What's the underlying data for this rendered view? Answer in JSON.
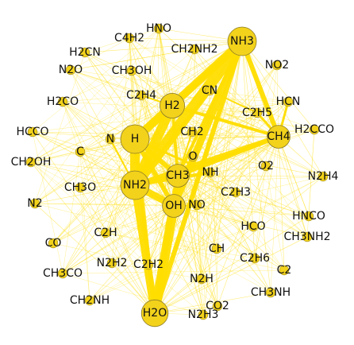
{
  "chart_data": {
    "type": "network",
    "title": "",
    "colors": {
      "node_fill": "#f2d21b",
      "node_stroke": "#8a7a2a",
      "edge": "#ffdd00",
      "label": "#111111"
    },
    "nodes": [
      {
        "id": "NH3",
        "size": 3.0
      },
      {
        "id": "H",
        "size": 3.0
      },
      {
        "id": "NH2",
        "size": 3.0
      },
      {
        "id": "H2",
        "size": 2.6
      },
      {
        "id": "C2H4",
        "size": 1.0
      },
      {
        "id": "CH4",
        "size": 2.4
      },
      {
        "id": "OH",
        "size": 2.4
      },
      {
        "id": "CH3",
        "size": 2.4
      },
      {
        "id": "H2O",
        "size": 2.8
      },
      {
        "id": "O",
        "size": 1.0
      },
      {
        "id": "NH",
        "size": 1.0
      },
      {
        "id": "NO",
        "size": 1.0
      },
      {
        "id": "CN",
        "size": 1.0
      },
      {
        "id": "C2H5",
        "size": 1.0
      },
      {
        "id": "HCN",
        "size": 1.0
      },
      {
        "id": "CH2",
        "size": 1.0
      },
      {
        "id": "N",
        "size": 1.0
      },
      {
        "id": "C",
        "size": 1.0
      },
      {
        "id": "HNO",
        "size": 1.0
      },
      {
        "id": "C4H2",
        "size": 1.0
      },
      {
        "id": "H2CN",
        "size": 1.0
      },
      {
        "id": "CH2NH2",
        "size": 1.0
      },
      {
        "id": "NO2",
        "size": 1.0
      },
      {
        "id": "N2O",
        "size": 1.0
      },
      {
        "id": "CH3OH",
        "size": 1.0
      },
      {
        "id": "H2CO",
        "size": 1.0
      },
      {
        "id": "HCCO",
        "size": 1.0
      },
      {
        "id": "H2CCO",
        "size": 1.0
      },
      {
        "id": "CH2OH",
        "size": 1.0
      },
      {
        "id": "O2",
        "size": 1.0
      },
      {
        "id": "N2H4",
        "size": 1.0
      },
      {
        "id": "CH3O",
        "size": 1.0
      },
      {
        "id": "C2H3",
        "size": 1.0
      },
      {
        "id": "N2",
        "size": 1.0
      },
      {
        "id": "HCO",
        "size": 1.0
      },
      {
        "id": "HNCO",
        "size": 1.0
      },
      {
        "id": "C2H",
        "size": 1.0
      },
      {
        "id": "CH3NH2",
        "size": 1.0
      },
      {
        "id": "CO",
        "size": 1.0
      },
      {
        "id": "N2H2",
        "size": 1.0
      },
      {
        "id": "C2H2",
        "size": 1.0
      },
      {
        "id": "CH",
        "size": 1.0
      },
      {
        "id": "C2H6",
        "size": 1.0
      },
      {
        "id": "CH3CO",
        "size": 1.0
      },
      {
        "id": "C2",
        "size": 1.0
      },
      {
        "id": "N2H",
        "size": 1.0
      },
      {
        "id": "CH3NH",
        "size": 1.0
      },
      {
        "id": "CH2NH",
        "size": 1.0
      },
      {
        "id": "CO2",
        "size": 1.0
      },
      {
        "id": "N2H3",
        "size": 1.0
      }
    ],
    "major_edges": [
      {
        "source": "NH3",
        "target": "H",
        "weight": 10
      },
      {
        "source": "NH3",
        "target": "NH2",
        "weight": 14
      },
      {
        "source": "NH3",
        "target": "H2",
        "weight": 6
      },
      {
        "source": "NH3",
        "target": "CH4",
        "weight": 6
      },
      {
        "source": "NH3",
        "target": "OH",
        "weight": 9
      },
      {
        "source": "NH3",
        "target": "H2O",
        "weight": 6
      },
      {
        "source": "NH3",
        "target": "CH3",
        "weight": 4
      },
      {
        "source": "H",
        "target": "NH2",
        "weight": 12
      },
      {
        "source": "H",
        "target": "H2",
        "weight": 10
      },
      {
        "source": "H",
        "target": "CH3",
        "weight": 6
      },
      {
        "source": "H",
        "target": "OH",
        "weight": 6
      },
      {
        "source": "H",
        "target": "H2O",
        "weight": 5
      },
      {
        "source": "NH2",
        "target": "H2",
        "weight": 12
      },
      {
        "source": "NH2",
        "target": "H2O",
        "weight": 10
      },
      {
        "source": "NH2",
        "target": "OH",
        "weight": 9
      },
      {
        "source": "NH2",
        "target": "CH3",
        "weight": 6
      },
      {
        "source": "NH2",
        "target": "CH4",
        "weight": 6
      },
      {
        "source": "H2",
        "target": "CH4",
        "weight": 4
      },
      {
        "source": "H2",
        "target": "CH3",
        "weight": 4
      },
      {
        "source": "CH4",
        "target": "CH3",
        "weight": 5
      },
      {
        "source": "CH4",
        "target": "C2H5",
        "weight": 3
      },
      {
        "source": "CH4",
        "target": "HCN",
        "weight": 3
      },
      {
        "source": "OH",
        "target": "H2O",
        "weight": 12
      },
      {
        "source": "OH",
        "target": "CH3",
        "weight": 5
      },
      {
        "source": "H2O",
        "target": "CH3",
        "weight": 6
      },
      {
        "source": "CN",
        "target": "NH2",
        "weight": 3
      },
      {
        "source": "CN",
        "target": "C2H5",
        "weight": 2
      },
      {
        "source": "NH",
        "target": "NH2",
        "weight": 4
      },
      {
        "source": "NH",
        "target": "H",
        "weight": 3
      },
      {
        "source": "O",
        "target": "OH",
        "weight": 2
      },
      {
        "source": "NO",
        "target": "OH",
        "weight": 2
      },
      {
        "source": "N",
        "target": "NH2",
        "weight": 2
      },
      {
        "source": "C2H4",
        "target": "H2",
        "weight": 2
      },
      {
        "source": "CH2",
        "target": "CH3",
        "weight": 2
      }
    ]
  }
}
